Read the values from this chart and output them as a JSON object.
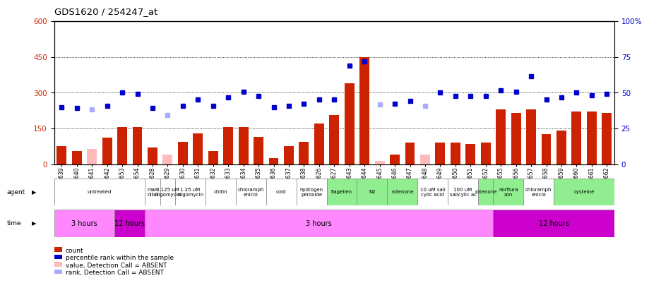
{
  "title": "GDS1620 / 254247_at",
  "samples": [
    "GSM85639",
    "GSM85640",
    "GSM85641",
    "GSM85642",
    "GSM85653",
    "GSM85654",
    "GSM85628",
    "GSM85629",
    "GSM85630",
    "GSM85631",
    "GSM85632",
    "GSM85633",
    "GSM85634",
    "GSM85635",
    "GSM85636",
    "GSM85637",
    "GSM85638",
    "GSM85626",
    "GSM85627",
    "GSM85643",
    "GSM85644",
    "GSM85645",
    "GSM85646",
    "GSM85647",
    "GSM85648",
    "GSM85649",
    "GSM85650",
    "GSM85651",
    "GSM85652",
    "GSM85655",
    "GSM85656",
    "GSM85657",
    "GSM85658",
    "GSM85659",
    "GSM85660",
    "GSM85661",
    "GSM85662"
  ],
  "count_values": [
    75,
    55,
    null,
    110,
    155,
    155,
    70,
    null,
    95,
    130,
    55,
    155,
    155,
    115,
    25,
    75,
    95,
    170,
    205,
    340,
    450,
    null,
    40,
    90,
    null,
    90,
    90,
    85,
    90,
    230,
    215,
    230,
    125,
    140,
    220,
    220,
    215
  ],
  "absent_count_values": [
    null,
    null,
    65,
    null,
    null,
    null,
    null,
    40,
    null,
    null,
    null,
    null,
    null,
    null,
    null,
    null,
    null,
    null,
    null,
    null,
    null,
    15,
    null,
    null,
    40,
    null,
    null,
    null,
    null,
    null,
    null,
    null,
    null,
    null,
    null,
    null,
    null
  ],
  "rank_values": [
    240,
    235,
    null,
    245,
    300,
    295,
    235,
    null,
    245,
    270,
    245,
    280,
    305,
    285,
    240,
    245,
    255,
    270,
    270,
    415,
    430,
    null,
    255,
    265,
    null,
    300,
    285,
    285,
    285,
    310,
    305,
    370,
    270,
    280,
    300,
    290,
    295
  ],
  "absent_rank_values": [
    null,
    null,
    230,
    null,
    null,
    null,
    null,
    205,
    null,
    null,
    null,
    null,
    null,
    null,
    null,
    null,
    null,
    null,
    null,
    null,
    null,
    250,
    null,
    null,
    245,
    null,
    null,
    null,
    null,
    null,
    null,
    null,
    null,
    null,
    null,
    null,
    null
  ],
  "agent_labels": [
    {
      "text": "untreated",
      "start": 0,
      "end": 5,
      "green": false
    },
    {
      "text": "man\nnitol",
      "start": 6,
      "end": 6,
      "green": false
    },
    {
      "text": "0.125 uM\noligomycin",
      "start": 7,
      "end": 7,
      "green": false
    },
    {
      "text": "1.25 uM\noligomycin",
      "start": 8,
      "end": 9,
      "green": false
    },
    {
      "text": "chitin",
      "start": 10,
      "end": 11,
      "green": false
    },
    {
      "text": "chloramph\nenicol",
      "start": 12,
      "end": 13,
      "green": false
    },
    {
      "text": "cold",
      "start": 14,
      "end": 15,
      "green": false
    },
    {
      "text": "hydrogen\nperoxide",
      "start": 16,
      "end": 17,
      "green": false
    },
    {
      "text": "flagellen",
      "start": 18,
      "end": 19,
      "green": true
    },
    {
      "text": "N2",
      "start": 20,
      "end": 21,
      "green": true
    },
    {
      "text": "rotenone",
      "start": 22,
      "end": 23,
      "green": true
    },
    {
      "text": "10 uM sali\ncylic acid",
      "start": 24,
      "end": 25,
      "green": false
    },
    {
      "text": "100 uM\nsalicylic ac",
      "start": 26,
      "end": 27,
      "green": false
    },
    {
      "text": "rotenone",
      "start": 28,
      "end": 28,
      "green": true
    },
    {
      "text": "norflura\nzon",
      "start": 29,
      "end": 30,
      "green": true
    },
    {
      "text": "chloramph\nenicol",
      "start": 31,
      "end": 32,
      "green": false
    },
    {
      "text": "cysteine",
      "start": 33,
      "end": 36,
      "green": true
    }
  ],
  "time_labels": [
    {
      "text": "3 hours",
      "start": 0,
      "end": 3,
      "color": "#ff88ff"
    },
    {
      "text": "12 hours",
      "start": 4,
      "end": 5,
      "color": "#cc00cc"
    },
    {
      "text": "3 hours",
      "start": 6,
      "end": 28,
      "color": "#ff88ff"
    },
    {
      "text": "12 hours",
      "start": 29,
      "end": 36,
      "color": "#cc00cc"
    }
  ],
  "bar_color": "#cc2200",
  "absent_bar_color": "#ffbbbb",
  "rank_color": "#0000cc",
  "absent_rank_color": "#aaaaff",
  "green_bg": "#90ee90",
  "white_bg": "#ffffff",
  "gray_bg": "#d8d8d8"
}
